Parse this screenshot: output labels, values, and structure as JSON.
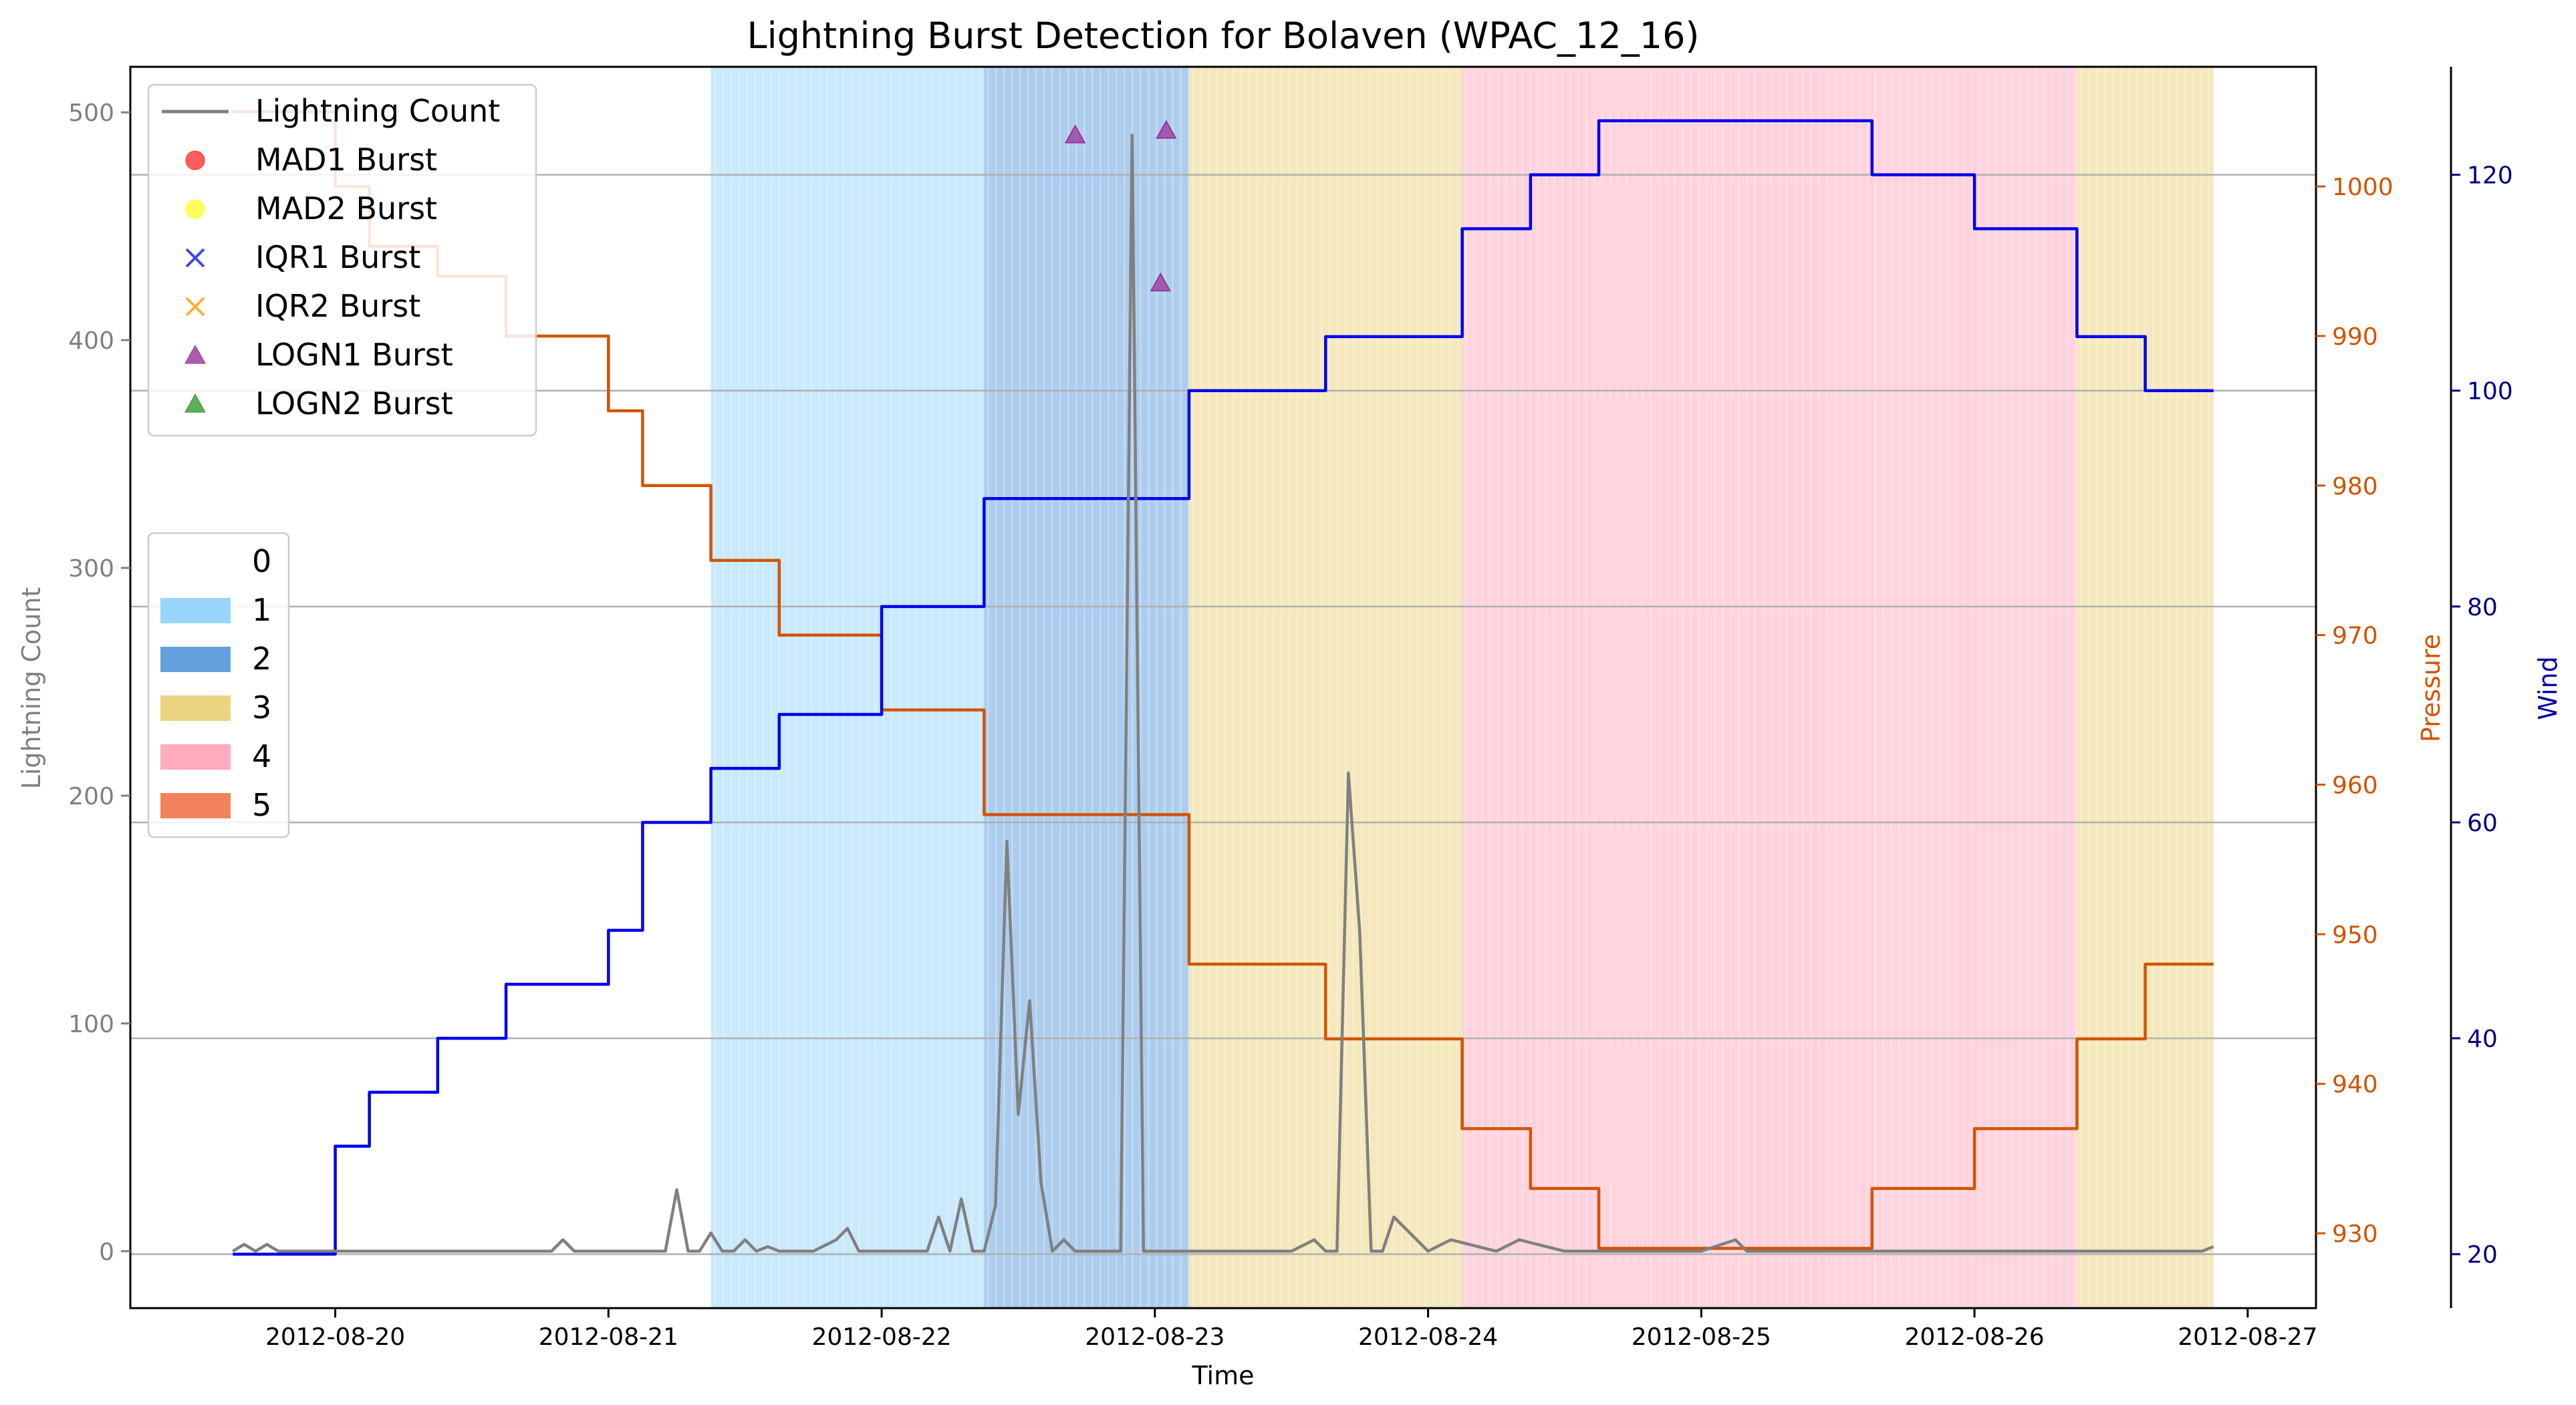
{
  "chart_data": {
    "type": "line",
    "title": "Lightning Burst Detection for Bolaven (WPAC_12_16)",
    "xlabel": "Time",
    "ylabel_left": "Lightning Count",
    "ylabel_pressure": "Pressure",
    "ylabel_wind": "Wind",
    "x_ticks": [
      "2012-08-20",
      "2012-08-21",
      "2012-08-22",
      "2012-08-23",
      "2012-08-24",
      "2012-08-25",
      "2012-08-26",
      "2012-08-27"
    ],
    "x_range": [
      "2012-08-19 06:00",
      "2012-08-27 06:00"
    ],
    "y_left": {
      "range": [
        -25,
        520
      ],
      "ticks": [
        0,
        100,
        200,
        300,
        400,
        500
      ]
    },
    "y_pressure": {
      "range": [
        925,
        1008
      ],
      "ticks": [
        930,
        940,
        950,
        960,
        970,
        980,
        990,
        1000
      ]
    },
    "y_wind": {
      "range": [
        15,
        130
      ],
      "ticks": [
        20,
        40,
        60,
        80,
        100,
        120
      ]
    },
    "grid": "horizontal lines at wind ticks",
    "colors": {
      "lightning": "#808080",
      "pressure": "#d35400",
      "wind": "#0000ee",
      "cat1": "#87cefa",
      "cat2": "#4a90d9",
      "cat3": "#e6cc6b",
      "cat4": "#ff9eb5",
      "cat5": "#ef6c3e",
      "logn1": "#993399"
    },
    "category_spans": [
      {
        "category": "1",
        "start": "2012-08-21 09:00",
        "end": "2012-08-22 09:00"
      },
      {
        "category": "2",
        "start": "2012-08-22 09:00",
        "end": "2012-08-23 03:00"
      },
      {
        "category": "3",
        "start": "2012-08-23 03:00",
        "end": "2012-08-24 03:00"
      },
      {
        "category": "4",
        "start": "2012-08-24 03:00",
        "end": "2012-08-26 09:00"
      },
      {
        "category": "3",
        "start": "2012-08-26 09:00",
        "end": "2012-08-26 21:00"
      }
    ],
    "series": [
      {
        "name": "Pressure",
        "axis": "pressure",
        "step": true,
        "x": [
          "2012-08-19 15:00",
          "2012-08-20 00:00",
          "2012-08-20 03:00",
          "2012-08-20 09:00",
          "2012-08-20 15:00",
          "2012-08-21 00:00",
          "2012-08-21 03:00",
          "2012-08-21 09:00",
          "2012-08-21 15:00",
          "2012-08-22 00:00",
          "2012-08-22 09:00",
          "2012-08-23 03:00",
          "2012-08-23 15:00",
          "2012-08-24 03:00",
          "2012-08-24 09:00",
          "2012-08-24 15:00",
          "2012-08-25 15:00",
          "2012-08-26 00:00",
          "2012-08-26 09:00",
          "2012-08-26 15:00",
          "2012-08-26 21:00"
        ],
        "values": [
          1005,
          1000,
          996,
          994,
          990,
          985,
          980,
          975,
          970,
          965,
          958,
          948,
          943,
          937,
          933,
          929,
          933,
          937,
          943,
          948,
          948
        ]
      },
      {
        "name": "Wind",
        "axis": "wind",
        "step": true,
        "x": [
          "2012-08-19 15:00",
          "2012-08-20 00:00",
          "2012-08-20 03:00",
          "2012-08-20 09:00",
          "2012-08-20 15:00",
          "2012-08-21 00:00",
          "2012-08-21 03:00",
          "2012-08-21 09:00",
          "2012-08-21 15:00",
          "2012-08-22 00:00",
          "2012-08-22 09:00",
          "2012-08-23 03:00",
          "2012-08-23 15:00",
          "2012-08-24 03:00",
          "2012-08-24 09:00",
          "2012-08-24 15:00",
          "2012-08-25 15:00",
          "2012-08-26 00:00",
          "2012-08-26 09:00",
          "2012-08-26 15:00",
          "2012-08-26 21:00"
        ],
        "values": [
          20,
          30,
          35,
          40,
          45,
          50,
          60,
          65,
          70,
          80,
          90,
          100,
          105,
          115,
          120,
          125,
          120,
          115,
          105,
          100,
          100
        ]
      },
      {
        "name": "Lightning Count",
        "axis": "left",
        "x": [
          "2012-08-19 15:00",
          "2012-08-19 16:00",
          "2012-08-19 17:00",
          "2012-08-19 18:00",
          "2012-08-19 19:00",
          "2012-08-20 00:00",
          "2012-08-20 12:00",
          "2012-08-20 19:00",
          "2012-08-20 20:00",
          "2012-08-20 21:00",
          "2012-08-20 22:00",
          "2012-08-20 23:00",
          "2012-08-21 00:00",
          "2012-08-21 05:00",
          "2012-08-21 06:00",
          "2012-08-21 07:00",
          "2012-08-21 08:00",
          "2012-08-21 09:00",
          "2012-08-21 10:00",
          "2012-08-21 11:00",
          "2012-08-21 12:00",
          "2012-08-21 13:00",
          "2012-08-21 14:00",
          "2012-08-21 15:00",
          "2012-08-22 00:00",
          "2012-08-21 18:00",
          "2012-08-21 20:00",
          "2012-08-21 21:00",
          "2012-08-21 22:00",
          "2012-08-21 23:00",
          "2012-08-22 00:00",
          "2012-08-22 04:00",
          "2012-08-22 05:00",
          "2012-08-22 06:00",
          "2012-08-22 07:00",
          "2012-08-22 08:00",
          "2012-08-22 09:00",
          "2012-08-22 10:00",
          "2012-08-22 11:00",
          "2012-08-22 12:00",
          "2012-08-22 13:00",
          "2012-08-22 14:00",
          "2012-08-22 15:00",
          "2012-08-22 16:00",
          "2012-08-22 17:00",
          "2012-08-22 18:00",
          "2012-08-22 19:00",
          "2012-08-22 20:00",
          "2012-08-22 21:00",
          "2012-08-22 22:00",
          "2012-08-22 23:00",
          "2012-08-23 00:00",
          "2012-08-23 01:00",
          "2012-08-23 02:00",
          "2012-08-23 03:00",
          "2012-08-23 04:00",
          "2012-08-23 05:00",
          "2012-08-23 06:00",
          "2012-08-23 12:00",
          "2012-08-23 14:00",
          "2012-08-23 15:00",
          "2012-08-23 16:00",
          "2012-08-23 17:00",
          "2012-08-23 18:00",
          "2012-08-23 19:00",
          "2012-08-23 20:00",
          "2012-08-23 21:00",
          "2012-08-24 00:00",
          "2012-08-24 02:00",
          "2012-08-24 06:00",
          "2012-08-24 08:00",
          "2012-08-24 12:00",
          "2012-08-24 16:00",
          "2012-08-25 00:00",
          "2012-08-25 03:00",
          "2012-08-25 04:00",
          "2012-08-25 06:00",
          "2012-08-25 12:00",
          "2012-08-26 00:00",
          "2012-08-26 12:00",
          "2012-08-26 20:00",
          "2012-08-26 21:00"
        ],
        "values": [
          0,
          3,
          0,
          3,
          0,
          0,
          0,
          0,
          5,
          0,
          0,
          0,
          0,
          0,
          27,
          0,
          0,
          8,
          0,
          0,
          5,
          0,
          2,
          0,
          0,
          0,
          5,
          10,
          0,
          0,
          0,
          0,
          15,
          0,
          23,
          0,
          0,
          20,
          180,
          60,
          110,
          30,
          0,
          5,
          0,
          0,
          0,
          0,
          0,
          490,
          0,
          0,
          0,
          0,
          0,
          0,
          0,
          0,
          0,
          5,
          0,
          0,
          210,
          140,
          0,
          0,
          15,
          0,
          5,
          0,
          5,
          0,
          0,
          0,
          5,
          0,
          0,
          0,
          0,
          0,
          0,
          2
        ]
      }
    ],
    "bursts": {
      "LOGN1": [
        {
          "x": "2012-08-22 17:00",
          "y": 490
        },
        {
          "x": "2012-08-23 00:30",
          "y": 425
        },
        {
          "x": "2012-08-23 01:00",
          "y": 492
        }
      ]
    },
    "legend_top": {
      "placement": "upper-left",
      "entries": [
        "Lightning Count",
        "MAD1 Burst",
        "MAD2 Burst",
        "IQR1 Burst",
        "IQR2 Burst",
        "LOGN1 Burst",
        "LOGN2 Burst"
      ]
    },
    "legend_categories": {
      "placement": "center-left",
      "entries": [
        "0",
        "1",
        "2",
        "3",
        "4",
        "5"
      ]
    }
  }
}
